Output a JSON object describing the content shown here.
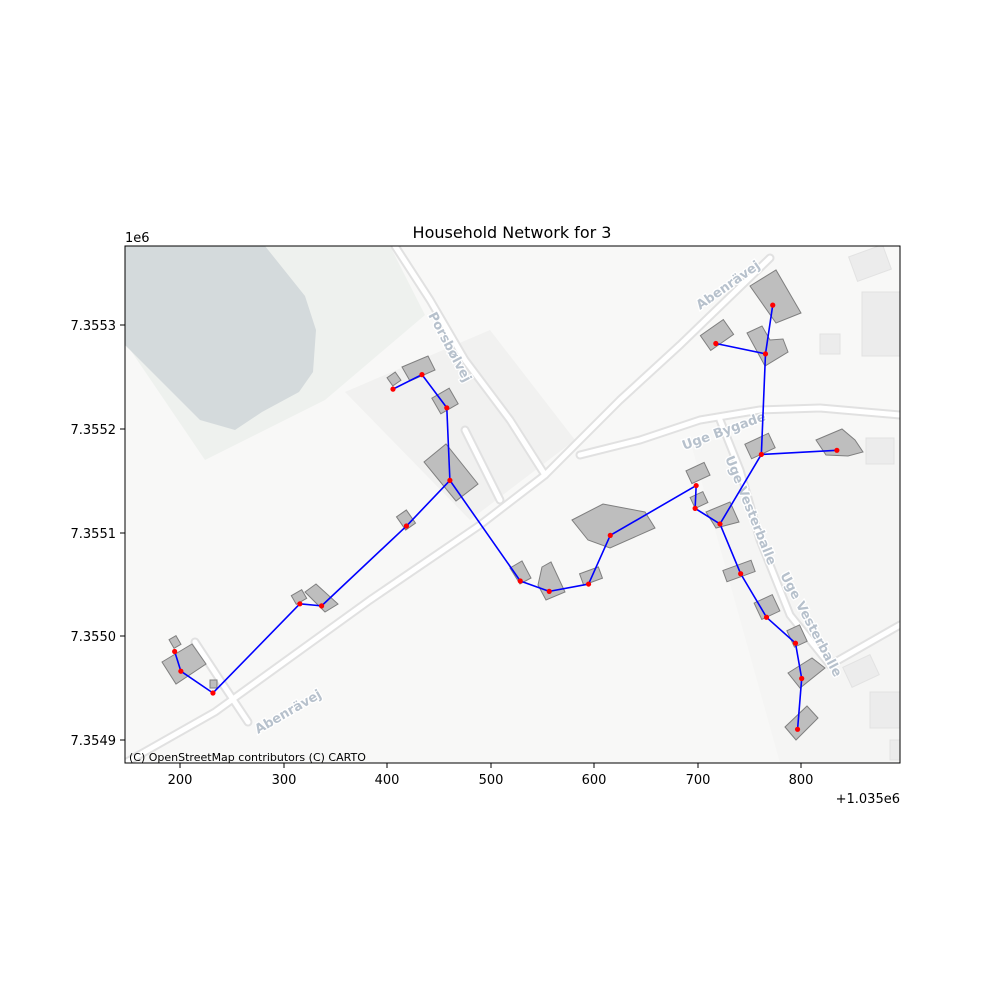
{
  "chart_data": {
    "type": "map",
    "title": "Household Network for 3",
    "attribution": "(C) OpenStreetMap contributors (C) CARTO",
    "x_ticks": [
      "200",
      "300",
      "400",
      "500",
      "600",
      "700",
      "800"
    ],
    "x_offset_label": "+1.035e6",
    "y_ticks": [
      "7.3549",
      "7.3550",
      "7.3551",
      "7.3552",
      "7.3553"
    ],
    "y_scale_label": "1e6",
    "street_labels": [
      "Porsbølvej",
      "Abenrävej",
      "Abenrävej",
      "Uge Bygade",
      "Uge Vesterballe",
      "Uge Vesterballe"
    ],
    "nodes": [
      {
        "x": 195,
        "y": 7354992
      },
      {
        "x": 201,
        "y": 7354973
      },
      {
        "x": 232,
        "y": 7354952
      },
      {
        "x": 316,
        "y": 7355038
      },
      {
        "x": 337,
        "y": 7355036
      },
      {
        "x": 419,
        "y": 7355113
      },
      {
        "x": 461,
        "y": 7355157
      },
      {
        "x": 458,
        "y": 7355227
      },
      {
        "x": 434,
        "y": 7355259
      },
      {
        "x": 406,
        "y": 7355245
      },
      {
        "x": 529,
        "y": 7355060
      },
      {
        "x": 557,
        "y": 7355050
      },
      {
        "x": 595,
        "y": 7355057
      },
      {
        "x": 616,
        "y": 7355104
      },
      {
        "x": 699,
        "y": 7355152
      },
      {
        "x": 698,
        "y": 7355130
      },
      {
        "x": 722,
        "y": 7355115
      },
      {
        "x": 762,
        "y": 7355182
      },
      {
        "x": 835,
        "y": 7355186
      },
      {
        "x": 766,
        "y": 7355279
      },
      {
        "x": 718,
        "y": 7355289
      },
      {
        "x": 773,
        "y": 7355326
      },
      {
        "x": 742,
        "y": 7355067
      },
      {
        "x": 767,
        "y": 7355025
      },
      {
        "x": 795,
        "y": 7355000
      },
      {
        "x": 801,
        "y": 7354966
      },
      {
        "x": 797,
        "y": 7354917
      }
    ],
    "edges": [
      [
        0,
        1
      ],
      [
        1,
        2
      ],
      [
        2,
        3
      ],
      [
        3,
        4
      ],
      [
        4,
        5
      ],
      [
        5,
        6
      ],
      [
        6,
        7
      ],
      [
        7,
        8
      ],
      [
        8,
        9
      ],
      [
        6,
        10
      ],
      [
        10,
        11
      ],
      [
        11,
        12
      ],
      [
        12,
        13
      ],
      [
        13,
        14
      ],
      [
        14,
        15
      ],
      [
        15,
        16
      ],
      [
        16,
        17
      ],
      [
        17,
        18
      ],
      [
        17,
        19
      ],
      [
        19,
        20
      ],
      [
        19,
        21
      ],
      [
        16,
        22
      ],
      [
        22,
        23
      ],
      [
        23,
        24
      ],
      [
        24,
        25
      ],
      [
        25,
        26
      ]
    ],
    "xlim": [
      147,
      896
    ],
    "ylim": [
      7354884.5,
      7355383
    ],
    "edge_color": "#0000ff",
    "node_color": "#ff0000",
    "building_color": "#bebebe",
    "building_outline": "#7f7f7f",
    "basemap_color": "#f8f8f7",
    "water_color": "#d4dadc"
  }
}
